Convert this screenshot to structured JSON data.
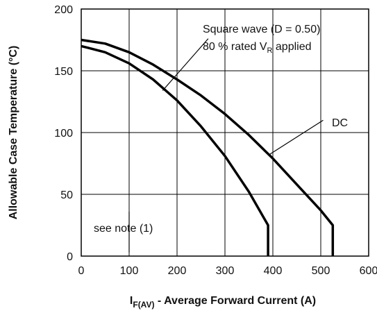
{
  "chart_data": {
    "type": "line",
    "xlabel": {
      "main": "I",
      "subscript": "F(AV)",
      "rest": " - Average Forward Current (A)"
    },
    "ylabel": "Allowable Case Temperature (°C)",
    "xlim": [
      0,
      600
    ],
    "ylim": [
      0,
      200
    ],
    "xticks": [
      0,
      100,
      200,
      300,
      400,
      500,
      600
    ],
    "yticks": [
      0,
      50,
      100,
      150,
      200
    ],
    "grid": true,
    "series": [
      {
        "name": "Square wave (D = 0.50)",
        "x": [
          0,
          50,
          100,
          150,
          200,
          250,
          300,
          350,
          390,
          390,
          390
        ],
        "y": [
          170,
          165,
          156,
          143,
          126,
          105,
          81,
          52,
          25,
          25,
          0
        ]
      },
      {
        "name": "DC",
        "x": [
          0,
          50,
          100,
          150,
          200,
          250,
          300,
          350,
          400,
          450,
          500,
          525,
          525
        ],
        "y": [
          175,
          172,
          165,
          155,
          143,
          130,
          115,
          98,
          79,
          58,
          37,
          25,
          0
        ]
      }
    ],
    "annotations": [
      {
        "id": "square",
        "line1": "Square wave (D = 0.50)",
        "line2_main": "80 % rated V",
        "line2_sub": "R",
        "line2_rest": " applied"
      },
      {
        "id": "dc",
        "text": "DC"
      },
      {
        "id": "note",
        "text": "see note (1)"
      }
    ]
  }
}
